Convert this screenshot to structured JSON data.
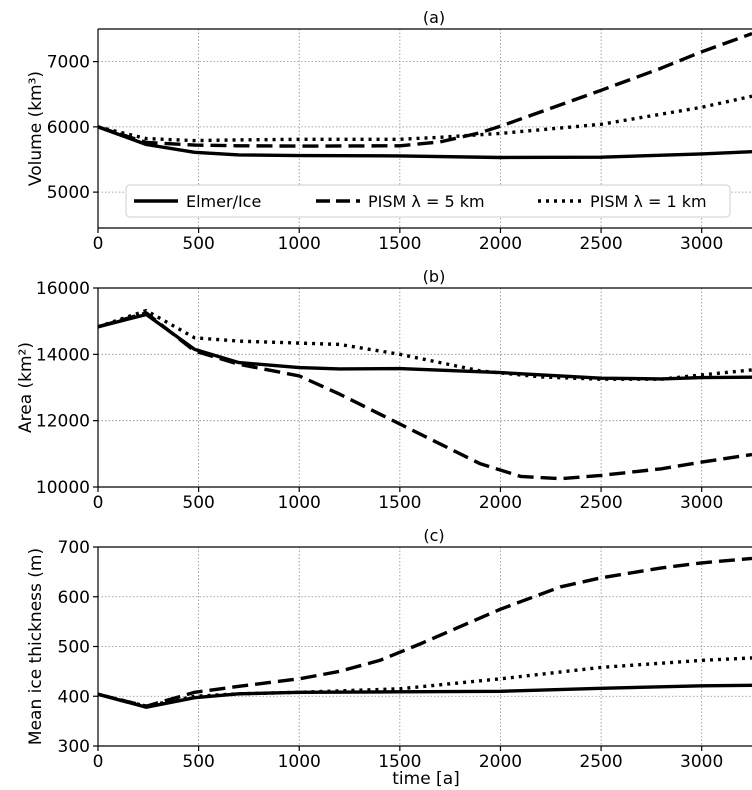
{
  "chart_data": [
    {
      "type": "line",
      "title": "(a)",
      "xlabel": "",
      "ylabel": "Volume (km³)",
      "xlim": [
        0,
        3250
      ],
      "ylim": [
        4450,
        7500
      ],
      "xticks": [
        0,
        500,
        1000,
        1500,
        2000,
        2500,
        3000
      ],
      "yticks": [
        5000,
        6000,
        7000
      ],
      "grid": true,
      "legend": {
        "position": "bottom-center",
        "entries": [
          {
            "label": "Elmer/Ice",
            "style": "solid"
          },
          {
            "label": "PISM λ = 5 km",
            "style": "dashed"
          },
          {
            "label": "PISM λ = 1 km",
            "style": "dotted"
          }
        ]
      },
      "series": [
        {
          "name": "Elmer/Ice",
          "style": "solid",
          "x": [
            0,
            240,
            480,
            700,
            1000,
            1500,
            2000,
            2500,
            3000,
            3250
          ],
          "y": [
            6000,
            5730,
            5610,
            5570,
            5560,
            5555,
            5530,
            5535,
            5585,
            5620
          ]
        },
        {
          "name": "PISM λ = 5 km",
          "style": "dashed",
          "x": [
            0,
            240,
            480,
            700,
            1000,
            1500,
            1700,
            1900,
            2000,
            2200,
            2500,
            2800,
            3000,
            3250
          ],
          "y": [
            6000,
            5760,
            5720,
            5710,
            5705,
            5710,
            5770,
            5910,
            6010,
            6230,
            6560,
            6900,
            7150,
            7430
          ]
        },
        {
          "name": "PISM λ = 1 km",
          "style": "dotted",
          "x": [
            0,
            240,
            480,
            700,
            1000,
            1500,
            1700,
            2000,
            2500,
            3000,
            3250
          ],
          "y": [
            6000,
            5820,
            5790,
            5800,
            5810,
            5810,
            5840,
            5900,
            6040,
            6300,
            6470
          ]
        }
      ]
    },
    {
      "type": "line",
      "title": "(b)",
      "xlabel": "",
      "ylabel": "Area (km²)",
      "xlim": [
        0,
        3250
      ],
      "ylim": [
        10000,
        16000
      ],
      "xticks": [
        0,
        500,
        1000,
        1500,
        2000,
        2500,
        3000
      ],
      "yticks": [
        10000,
        12000,
        14000,
        16000
      ],
      "grid": true,
      "series": [
        {
          "name": "Elmer/Ice",
          "style": "solid",
          "x": [
            0,
            240,
            480,
            700,
            1000,
            1200,
            1500,
            2000,
            2500,
            2800,
            3000,
            3250
          ],
          "y": [
            14830,
            15200,
            14150,
            13750,
            13600,
            13560,
            13570,
            13450,
            13280,
            13260,
            13300,
            13310
          ]
        },
        {
          "name": "PISM λ = 5 km",
          "style": "dashed",
          "x": [
            0,
            240,
            480,
            700,
            1000,
            1200,
            1500,
            1900,
            2100,
            2300,
            2500,
            2800,
            3000,
            3250
          ],
          "y": [
            14830,
            15250,
            14100,
            13700,
            13350,
            12800,
            11900,
            10700,
            10320,
            10250,
            10350,
            10550,
            10750,
            10980
          ]
        },
        {
          "name": "PISM λ = 1 km",
          "style": "dotted",
          "x": [
            0,
            240,
            480,
            700,
            1000,
            1200,
            1500,
            1900,
            2200,
            2500,
            2800,
            3000,
            3250
          ],
          "y": [
            14830,
            15320,
            14500,
            14400,
            14340,
            14300,
            14000,
            13500,
            13320,
            13250,
            13250,
            13380,
            13530
          ]
        }
      ]
    },
    {
      "type": "line",
      "title": "(c)",
      "xlabel": "time [a]",
      "ylabel": "Mean ice thickness (m)",
      "xlim": [
        0,
        3250
      ],
      "ylim": [
        300,
        700
      ],
      "xticks": [
        0,
        500,
        1000,
        1500,
        2000,
        2500,
        3000
      ],
      "yticks": [
        300,
        400,
        500,
        600,
        700
      ],
      "grid": true,
      "series": [
        {
          "name": "Elmer/Ice",
          "style": "solid",
          "x": [
            0,
            240,
            480,
            700,
            1000,
            1500,
            2000,
            2500,
            3000,
            3250
          ],
          "y": [
            404,
            378,
            397,
            405,
            408,
            409,
            410,
            416,
            421,
            422
          ]
        },
        {
          "name": "PISM λ = 5 km",
          "style": "dashed",
          "x": [
            0,
            240,
            480,
            700,
            1000,
            1200,
            1400,
            1600,
            1800,
            2000,
            2100,
            2300,
            2500,
            2800,
            3000,
            3250
          ],
          "y": [
            404,
            380,
            408,
            420,
            435,
            450,
            472,
            505,
            540,
            575,
            590,
            620,
            638,
            658,
            668,
            677
          ]
        },
        {
          "name": "PISM λ = 1 km",
          "style": "dotted",
          "x": [
            0,
            240,
            480,
            700,
            1000,
            1500,
            2000,
            2500,
            3000,
            3250
          ],
          "y": [
            404,
            380,
            400,
            405,
            408,
            415,
            435,
            458,
            472,
            477
          ]
        }
      ]
    }
  ]
}
